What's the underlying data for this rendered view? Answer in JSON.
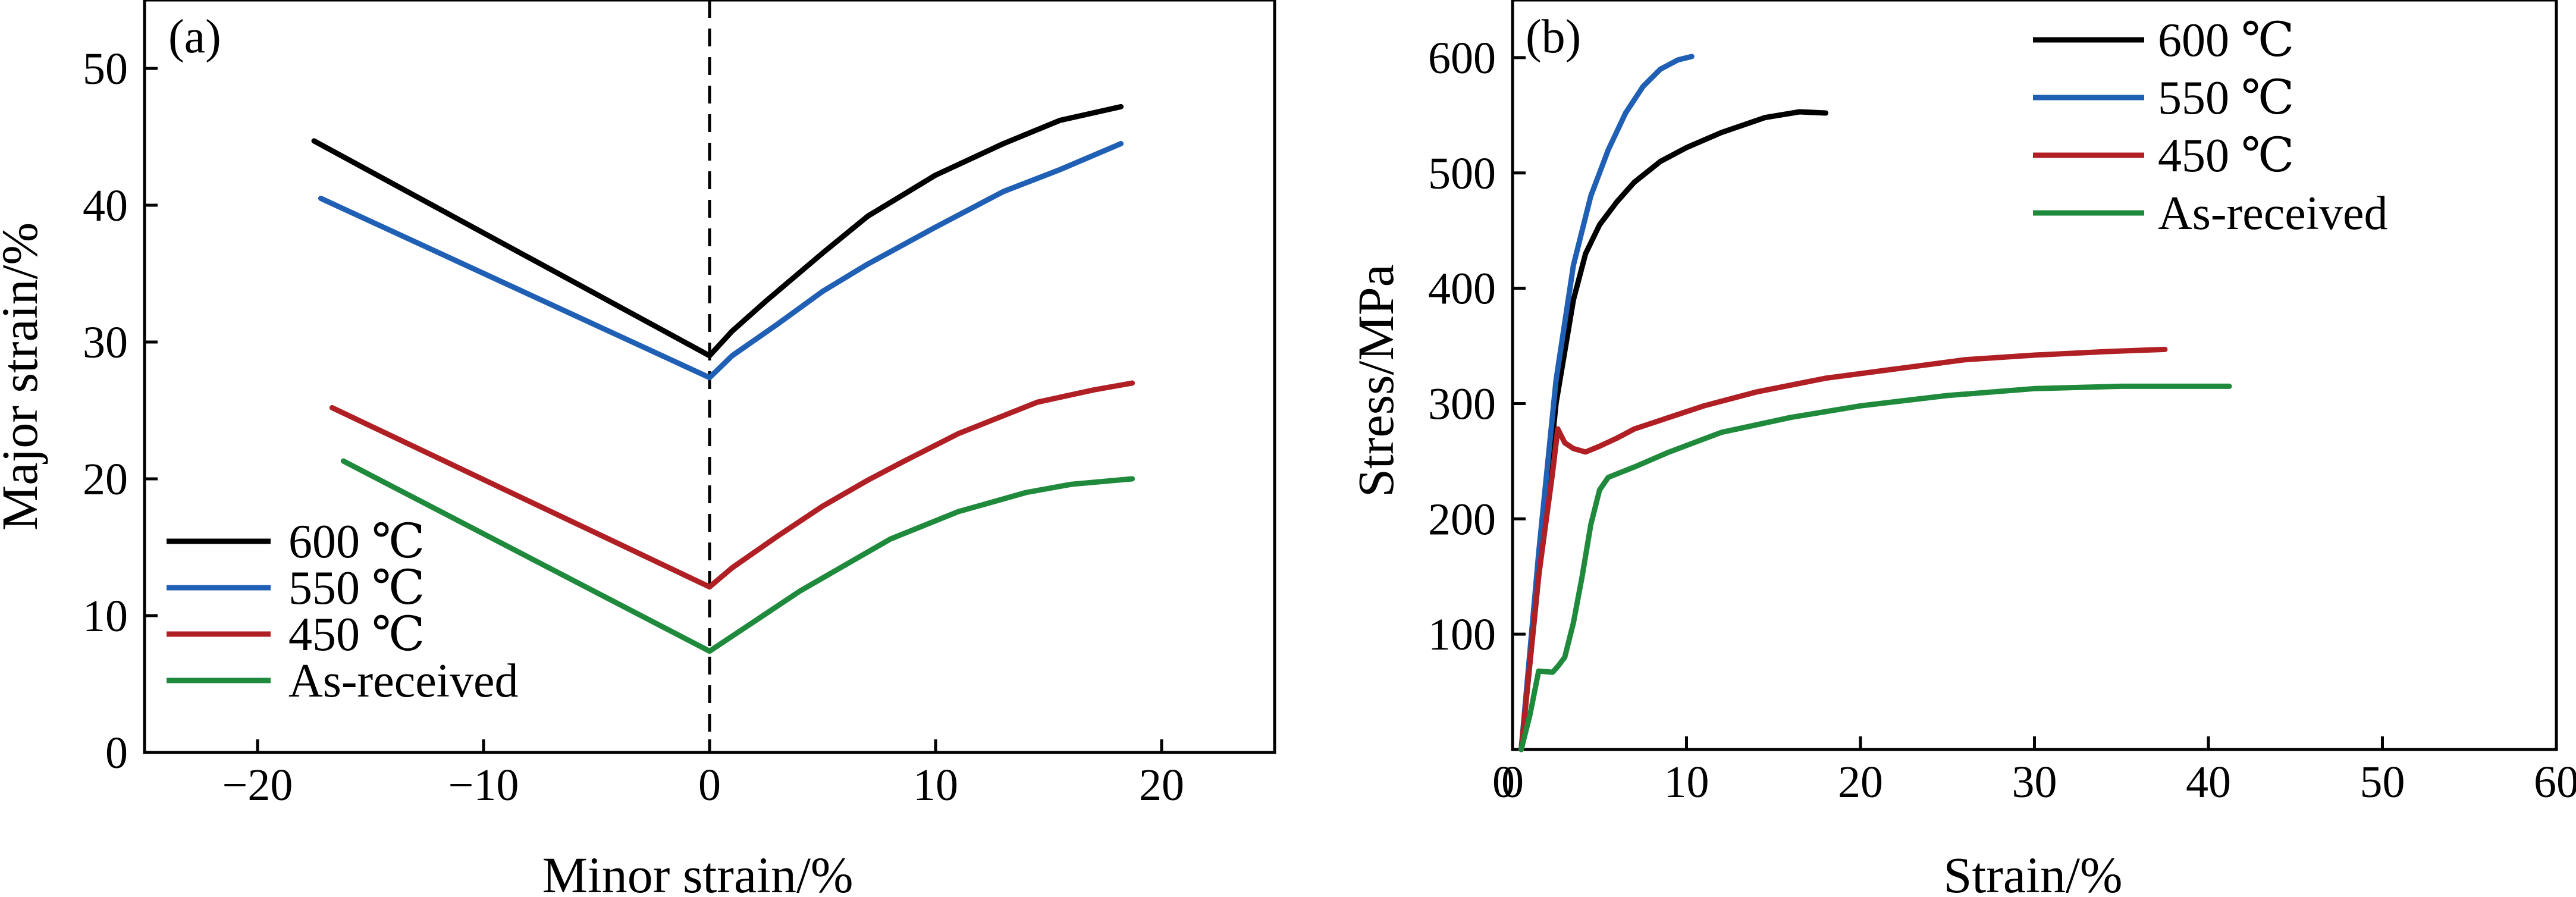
{
  "chart_data": [
    {
      "type": "line",
      "panel_label": "(a)",
      "xlabel": "Minor strain/%",
      "ylabel": "Major strain/%",
      "xlim": [
        -25,
        25
      ],
      "ylim": [
        0,
        55
      ],
      "xticks": [
        -20,
        -10,
        0,
        10,
        20
      ],
      "xtick_labels": [
        "−20",
        "−10",
        "0",
        "10",
        "20"
      ],
      "yticks": [
        0,
        10,
        20,
        30,
        40,
        50
      ],
      "ytick_labels": [
        "0",
        "10",
        "20",
        "30",
        "40",
        "50"
      ],
      "grid": false,
      "legend_position": "lower-left",
      "reference_line": {
        "x": 0,
        "style": "dashed"
      },
      "series": [
        {
          "name": "600 ℃",
          "color": "#000000",
          "x": [
            -17.5,
            0,
            1,
            2.5,
            5,
            7,
            10,
            13,
            15.5,
            18.2
          ],
          "y": [
            44.7,
            29.0,
            30.8,
            33.0,
            36.5,
            39.2,
            42.2,
            44.5,
            46.2,
            47.2
          ]
        },
        {
          "name": "550 ℃",
          "color": "#1f5fb4",
          "x": [
            -17.2,
            0,
            1,
            3,
            5,
            7,
            10,
            13,
            15.5,
            18.2
          ],
          "y": [
            40.5,
            27.4,
            29.0,
            31.3,
            33.7,
            35.7,
            38.4,
            41.0,
            42.6,
            44.5
          ]
        },
        {
          "name": "450 ℃",
          "color": "#b01f24",
          "x": [
            -16.7,
            0,
            1,
            3,
            5,
            7,
            8.5,
            11,
            14.5,
            17,
            18.7
          ],
          "y": [
            25.2,
            12.1,
            13.5,
            15.8,
            18.0,
            19.9,
            21.2,
            23.3,
            25.6,
            26.5,
            27.0
          ]
        },
        {
          "name": "As-received",
          "color": "#1f8a3c",
          "x": [
            -16.2,
            0,
            2,
            4,
            6,
            8,
            11,
            14,
            16,
            18.7
          ],
          "y": [
            21.3,
            7.4,
            9.6,
            11.8,
            13.7,
            15.6,
            17.6,
            19.0,
            19.6,
            20.0
          ]
        }
      ]
    },
    {
      "type": "line",
      "panel_label": "(b)",
      "xlabel": "Strain/%",
      "ylabel": "Stress/MPa",
      "xlim": [
        0,
        60
      ],
      "ylim": [
        0,
        650
      ],
      "xticks": [
        0,
        10,
        20,
        30,
        40,
        50,
        60
      ],
      "xtick_labels": [
        "0",
        "10",
        "20",
        "30",
        "40",
        "50",
        "60"
      ],
      "yticks": [
        100,
        200,
        300,
        400,
        500,
        600
      ],
      "ytick_labels": [
        "100",
        "200",
        "300",
        "400",
        "500",
        "600"
      ],
      "grid": false,
      "legend_position": "top-right",
      "series": [
        {
          "name": "600 ℃",
          "color": "#000000",
          "x": [
            0.5,
            1.5,
            2.5,
            3.5,
            4.2,
            5,
            6,
            7,
            8.5,
            10,
            12,
            14.5,
            16.5,
            18
          ],
          "y": [
            0,
            150,
            300,
            390,
            430,
            455,
            475,
            492,
            510,
            522,
            535,
            548,
            553,
            552
          ]
        },
        {
          "name": "550 ℃",
          "color": "#1f5fb4",
          "x": [
            0.5,
            1.5,
            2.5,
            3.5,
            4.5,
            5.5,
            6.5,
            7.5,
            8.5,
            9.5,
            10.3
          ],
          "y": [
            0,
            170,
            320,
            420,
            480,
            520,
            552,
            575,
            590,
            598,
            601
          ]
        },
        {
          "name": "450 ℃",
          "color": "#b01f24",
          "x": [
            0.5,
            1.5,
            2.3,
            2.6,
            3,
            3.5,
            4.2,
            5,
            6,
            7,
            9,
            11,
            14,
            18,
            22,
            26,
            30,
            34,
            37.5
          ],
          "y": [
            0,
            150,
            240,
            278,
            266,
            261,
            258,
            263,
            270,
            278,
            288,
            298,
            310,
            322,
            330,
            338,
            342,
            345,
            347
          ]
        },
        {
          "name": "As-received",
          "color": "#1f8a3c",
          "x": [
            0.5,
            1,
            1.5,
            2.3,
            2.6,
            3,
            3.5,
            4,
            4.5,
            5,
            5.5,
            7,
            9,
            12,
            16,
            20,
            25,
            30,
            35,
            41.2
          ],
          "y": [
            0,
            30,
            68,
            67,
            72,
            80,
            110,
            150,
            195,
            225,
            236,
            245,
            258,
            275,
            288,
            298,
            307,
            313,
            315,
            315
          ]
        }
      ]
    }
  ]
}
